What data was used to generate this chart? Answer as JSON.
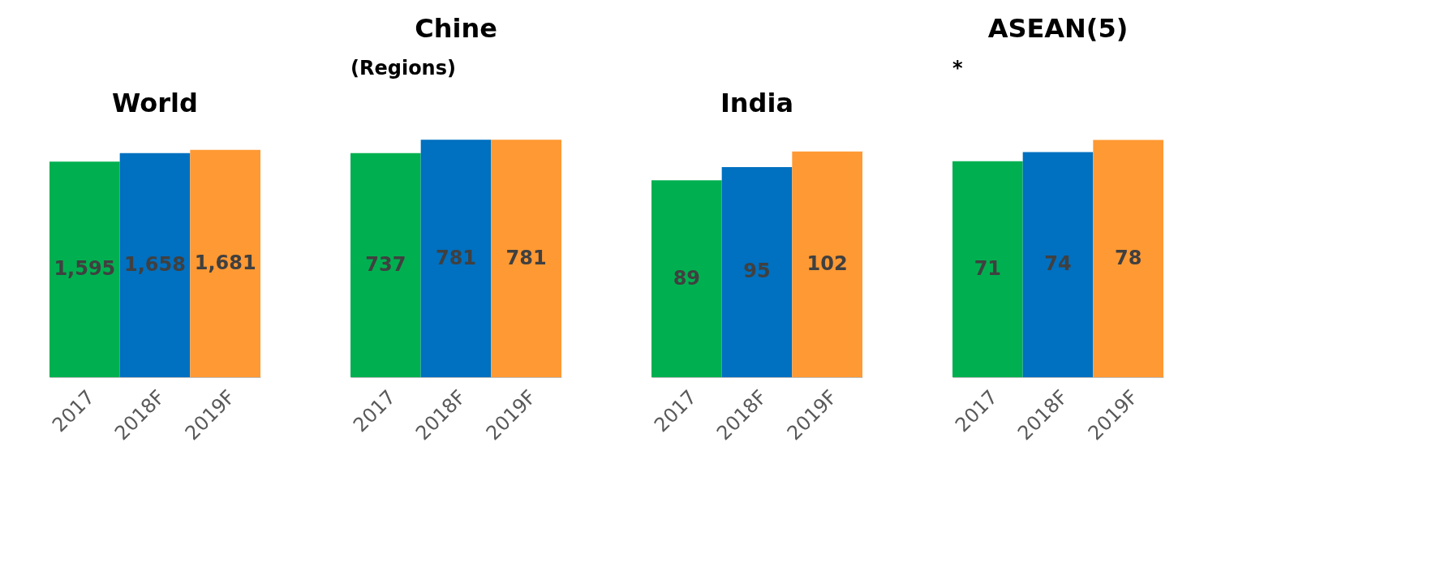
{
  "chart_data": [
    {
      "type": "bar",
      "title": "World",
      "categories": [
        "2017",
        "2018F",
        "2019F"
      ],
      "values": [
        1595,
        1658,
        1681
      ],
      "value_labels": [
        "1,595",
        "1,658",
        "1,681"
      ],
      "colors": [
        "#00b050",
        "#0070c0",
        "#ff9933"
      ],
      "tick_labels": "x"
    },
    {
      "type": "bar",
      "title": "Chine",
      "categories": [
        "2017",
        "2018F",
        "2019F"
      ],
      "values": [
        737,
        781,
        781
      ],
      "colors": [
        "#00b050",
        "#0070c0",
        "#ff9933"
      ],
      "data_labels": true,
      "tick_labels": "x",
      "annotations": [
        "(Regions)"
      ]
    },
    {
      "type": "bar",
      "title": "India",
      "categories": [
        "2017",
        "2018F",
        "2019F"
      ],
      "values": [
        89,
        95,
        102
      ],
      "colors": [
        "#00b050",
        "#0070c0",
        "#ff9933"
      ],
      "data_labels": true,
      "tick_labels": "x"
    },
    {
      "type": "bar",
      "title": "ASEAN(5)",
      "categories": [
        "2017",
        "2018F",
        "2019F"
      ],
      "values": [
        71,
        74,
        78
      ],
      "colors": [
        "#00b050",
        "#0070c0",
        "#ff9933"
      ],
      "data_labels": true,
      "tick_labels": "x",
      "annotations": [
        "*"
      ]
    }
  ]
}
